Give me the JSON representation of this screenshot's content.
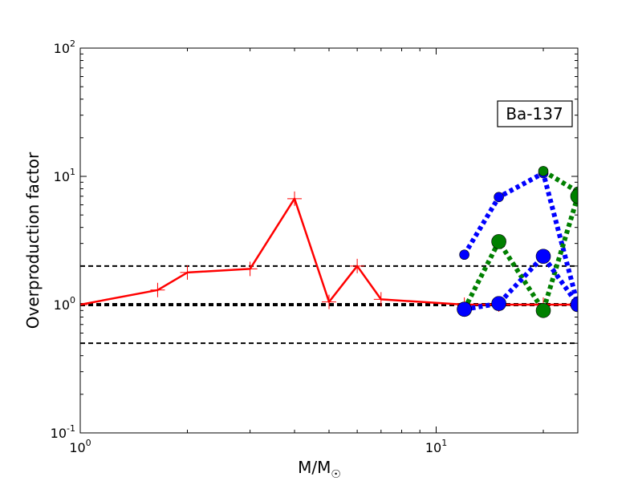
{
  "chart_data": {
    "type": "line",
    "xscale": "log",
    "yscale": "log",
    "xlim": [
      1,
      25
    ],
    "ylim": [
      0.1,
      100
    ],
    "xlabel_main": "M/M",
    "xlabel_sub": "☉",
    "ylabel": "Overproduction factor",
    "annotation": "Ba-137",
    "x_ticks": [
      {
        "value": 1,
        "base": "10",
        "exp": "0"
      },
      {
        "value": 10,
        "base": "10",
        "exp": "1"
      }
    ],
    "y_ticks": [
      {
        "value": 0.1,
        "base": "10",
        "exp": "-1"
      },
      {
        "value": 1,
        "base": "10",
        "exp": "0"
      },
      {
        "value": 10,
        "base": "10",
        "exp": "1"
      },
      {
        "value": 100,
        "base": "10",
        "exp": "2"
      }
    ],
    "reference_lines": [
      {
        "y": 2.0,
        "color": "#000000",
        "width": 2,
        "dash": "6,4"
      },
      {
        "y": 1.0,
        "color": "#000000",
        "width": 4,
        "dash": "6,4"
      },
      {
        "y": 0.5,
        "color": "#000000",
        "width": 2,
        "dash": "6,4"
      }
    ],
    "series": [
      {
        "color": "#ff0000",
        "style": "solid",
        "width": 2.5,
        "marker": "plus",
        "x": [
          1.0,
          1.65,
          2.0,
          3.0,
          4.0,
          5.0,
          6.0,
          7.0,
          12.0,
          15.0,
          20.0,
          25.0
        ],
        "y": [
          1.0,
          1.3,
          1.78,
          1.9,
          6.7,
          1.05,
          2.0,
          1.1,
          1.0,
          1.0,
          1.0,
          1.0
        ]
      },
      {
        "color": "#0000ff",
        "style": "dotted",
        "width": 6,
        "marker": "circle",
        "marker_size": 6,
        "x": [
          12,
          15,
          20,
          25
        ],
        "y": [
          2.45,
          6.9,
          10.6,
          1.0
        ]
      },
      {
        "color": "#008000",
        "style": "dotted",
        "width": 6,
        "marker": "circle",
        "marker_size": 6,
        "x": [
          20,
          25
        ],
        "y": [
          11.0,
          7.6
        ]
      },
      {
        "color": "#008000",
        "style": "dotted",
        "width": 6,
        "marker": "circle",
        "marker_size": 9,
        "x": [
          12,
          15,
          20,
          25
        ],
        "y": [
          0.92,
          3.1,
          0.9,
          7.0
        ]
      },
      {
        "color": "#0000ff",
        "style": "dotted",
        "width": 6,
        "marker": "circle",
        "marker_size": 9,
        "x": [
          12,
          15,
          20,
          25
        ],
        "y": [
          0.92,
          1.02,
          2.38,
          1.0
        ]
      }
    ]
  }
}
